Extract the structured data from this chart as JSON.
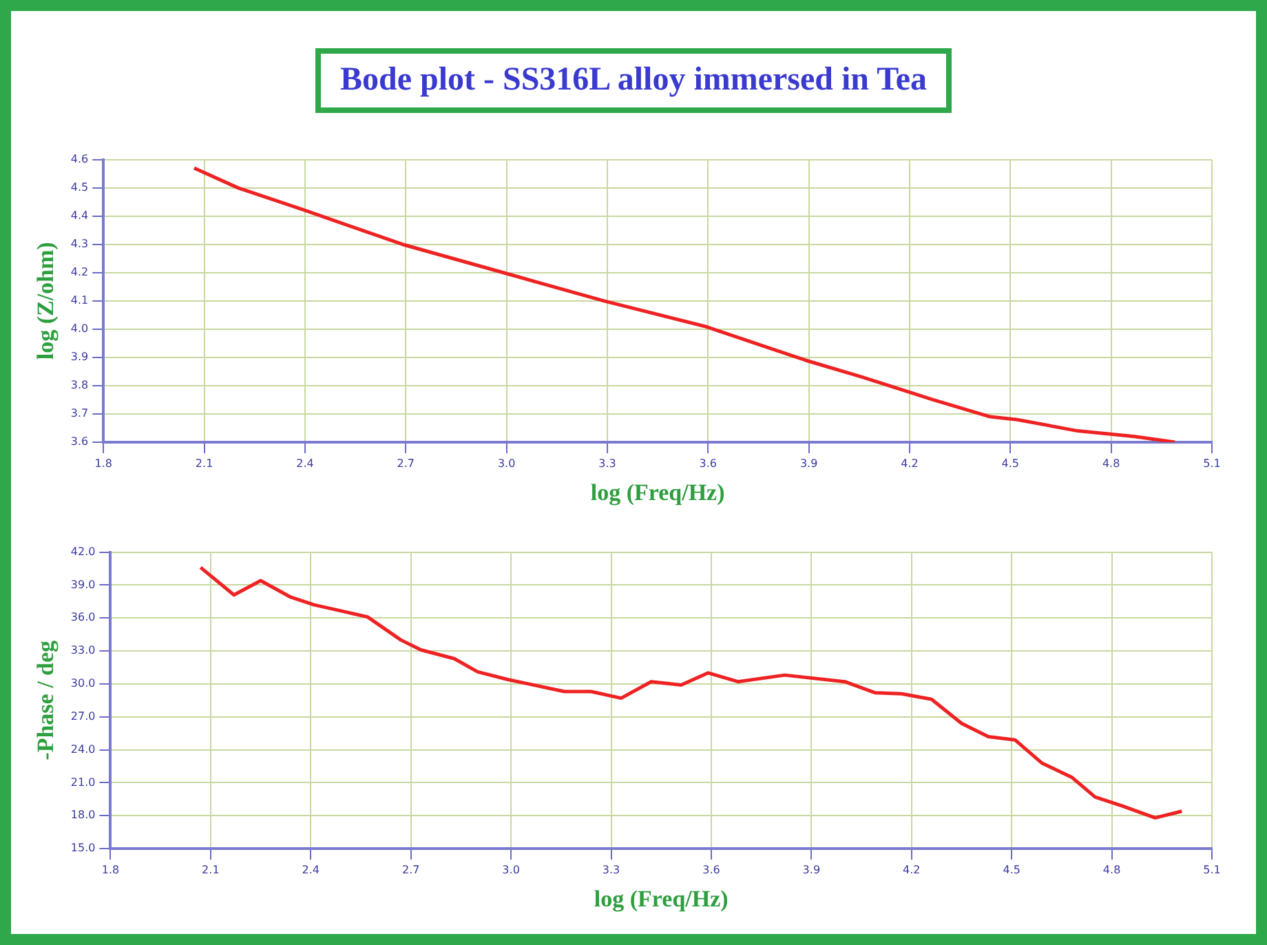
{
  "chart_data": [
    {
      "type": "line",
      "title": "Bode plot - SS316L alloy immersed in Tea",
      "xlabel": "log (Freq/Hz)",
      "ylabel": "log (Z/ohm)",
      "x": [
        2.07,
        2.2,
        2.4,
        2.69,
        2.99,
        3.29,
        3.59,
        3.89,
        4.06,
        4.27,
        4.44,
        4.52,
        4.7,
        4.87,
        4.99
      ],
      "series": [
        {
          "color": "#ee2222",
          "values": [
            4.57,
            4.5,
            4.42,
            4.3,
            4.2,
            4.1,
            4.01,
            3.89,
            3.83,
            3.75,
            3.69,
            3.68,
            3.64,
            3.62,
            3.6
          ]
        }
      ],
      "xlim": [
        1.8,
        5.1
      ],
      "xticks": [
        {
          "value": 1.8,
          "label": "1.8"
        },
        {
          "value": 2.1,
          "label": "2.1"
        },
        {
          "value": 2.4,
          "label": "2.4"
        },
        {
          "value": 2.7,
          "label": "2.7"
        },
        {
          "value": 3,
          "label": "3.0"
        },
        {
          "value": 3.3,
          "label": "3.3"
        },
        {
          "value": 3.6,
          "label": "3.6"
        },
        {
          "value": 3.9,
          "label": "3.9"
        },
        {
          "value": 4.2,
          "label": "4.2"
        },
        {
          "value": 4.5,
          "label": "4.5"
        },
        {
          "value": 4.8,
          "label": "4.8"
        },
        {
          "value": 5.1,
          "label": "5.1"
        }
      ],
      "ylim": [
        3.6,
        4.6
      ],
      "yticks": [
        {
          "value": 3.6,
          "label": "3.6"
        },
        {
          "value": 3.7,
          "label": "3.7"
        },
        {
          "value": 3.8,
          "label": "3.8"
        },
        {
          "value": 3.9,
          "label": "3.9"
        },
        {
          "value": 4,
          "label": "4.0"
        },
        {
          "value": 4.1,
          "label": "4.1"
        },
        {
          "value": 4.2,
          "label": "4.2"
        },
        {
          "value": 4.3,
          "label": "4.3"
        },
        {
          "value": 4.4,
          "label": "4.4"
        },
        {
          "value": 4.5,
          "label": "4.5"
        },
        {
          "value": 4.6,
          "label": "4.6"
        }
      ],
      "grid": true,
      "legend": false,
      "marker": "none",
      "line_style": "solid"
    },
    {
      "type": "line",
      "xlabel": "log (Freq/Hz)",
      "ylabel": "-Phase / deg",
      "x": [
        2.07,
        2.17,
        2.25,
        2.34,
        2.41,
        2.57,
        2.67,
        2.73,
        2.83,
        2.9,
        2.99,
        3.16,
        3.24,
        3.33,
        3.42,
        3.51,
        3.59,
        3.68,
        3.82,
        4.0,
        4.09,
        4.17,
        4.26,
        4.35,
        4.43,
        4.51,
        4.59,
        4.68,
        4.75,
        4.83,
        4.93,
        5.01
      ],
      "series": [
        {
          "color": "#ee2222",
          "values": [
            40.6,
            38.1,
            39.4,
            37.9,
            37.2,
            36.1,
            34.0,
            33.1,
            32.3,
            31.1,
            30.4,
            29.3,
            29.3,
            28.7,
            30.2,
            29.9,
            31.0,
            30.2,
            30.8,
            30.2,
            29.2,
            29.1,
            28.6,
            26.4,
            25.2,
            24.9,
            22.8,
            21.5,
            19.7,
            18.9,
            17.8,
            18.4
          ]
        }
      ],
      "xlim": [
        1.8,
        5.1
      ],
      "xticks": [
        {
          "value": 1.8,
          "label": "1.8"
        },
        {
          "value": 2.1,
          "label": "2.1"
        },
        {
          "value": 2.4,
          "label": "2.4"
        },
        {
          "value": 2.7,
          "label": "2.7"
        },
        {
          "value": 3,
          "label": "3.0"
        },
        {
          "value": 3.3,
          "label": "3.3"
        },
        {
          "value": 3.6,
          "label": "3.6"
        },
        {
          "value": 3.9,
          "label": "3.9"
        },
        {
          "value": 4.2,
          "label": "4.2"
        },
        {
          "value": 4.5,
          "label": "4.5"
        },
        {
          "value": 4.8,
          "label": "4.8"
        },
        {
          "value": 5.1,
          "label": "5.1"
        }
      ],
      "ylim": [
        15,
        42
      ],
      "yticks": [
        {
          "value": 15,
          "label": "15.0"
        },
        {
          "value": 18,
          "label": "18.0"
        },
        {
          "value": 21,
          "label": "21.0"
        },
        {
          "value": 24,
          "label": "24.0"
        },
        {
          "value": 27,
          "label": "27.0"
        },
        {
          "value": 30,
          "label": "30.0"
        },
        {
          "value": 33,
          "label": "33.0"
        },
        {
          "value": 36,
          "label": "36.0"
        },
        {
          "value": 39,
          "label": "39.0"
        },
        {
          "value": 42,
          "label": "42.0"
        }
      ],
      "grid": true,
      "legend": false,
      "marker": "none",
      "line_style": "solid"
    }
  ]
}
